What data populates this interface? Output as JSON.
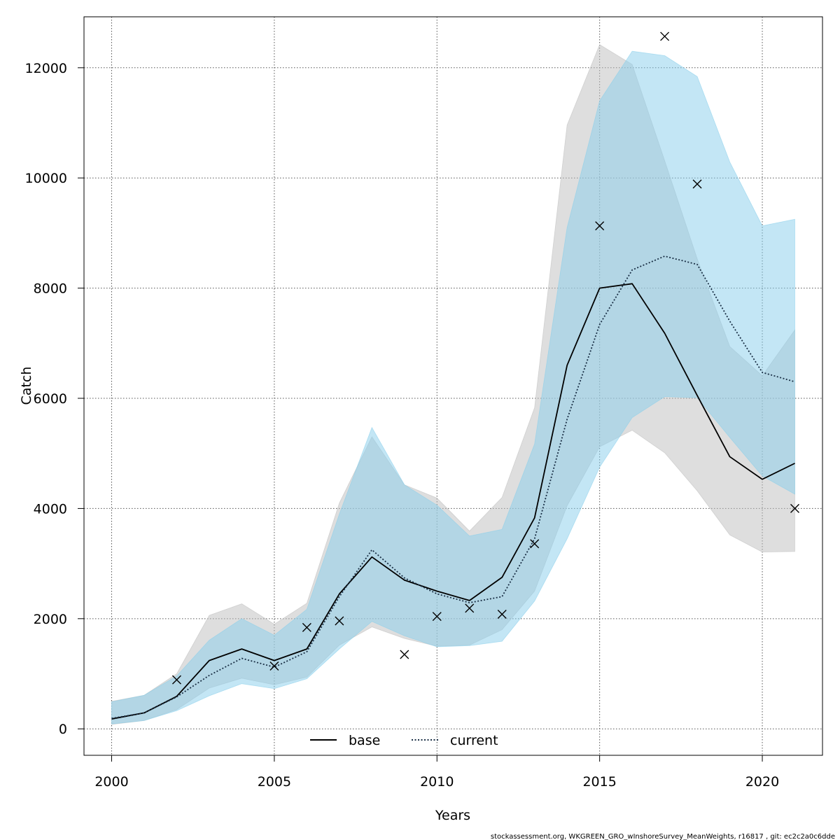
{
  "chart_data": {
    "type": "line",
    "xlabel": "Years",
    "ylabel": "Catch",
    "xlim": [
      1999.15,
      2021.85
    ],
    "ylim": [
      -480,
      12925
    ],
    "xticks": [
      2000,
      2005,
      2010,
      2015,
      2020
    ],
    "yticks": [
      0,
      2000,
      4000,
      6000,
      8000,
      10000,
      12000
    ],
    "grid": true,
    "legend_position": "bottom-center",
    "x": [
      2000,
      2001,
      2002,
      2003,
      2004,
      2005,
      2006,
      2007,
      2008,
      2009,
      2010,
      2011,
      2012,
      2013,
      2014,
      2015,
      2016,
      2017,
      2018,
      2019,
      2020,
      2021
    ],
    "series": [
      {
        "name": "base",
        "line_color": "#000000",
        "dash": "solid",
        "band_color": "#bebebe",
        "values": [
          180,
          290,
          590,
          1240,
          1450,
          1240,
          1450,
          2450,
          3120,
          2700,
          2500,
          2330,
          2750,
          3830,
          6600,
          8000,
          8080,
          7180,
          6050,
          4940,
          4530,
          4820
        ],
        "lower": [
          80,
          150,
          350,
          740,
          920,
          800,
          940,
          1520,
          1850,
          1640,
          1500,
          1520,
          1800,
          2500,
          4050,
          5120,
          5420,
          5010,
          4320,
          3520,
          3210,
          3220
        ],
        "upper": [
          500,
          610,
          1000,
          2060,
          2270,
          1900,
          2280,
          4100,
          5300,
          4430,
          4190,
          3590,
          4200,
          5830,
          10960,
          12420,
          12060,
          10310,
          8530,
          6940,
          6410,
          7240
        ]
      },
      {
        "name": "current",
        "line_color": "#1a2f45",
        "dash": "dotted",
        "band_color": "#87ceeb",
        "values": [
          190,
          290,
          580,
          970,
          1280,
          1120,
          1400,
          2400,
          3250,
          2740,
          2450,
          2290,
          2400,
          3450,
          5620,
          7340,
          8330,
          8580,
          8430,
          7400,
          6470,
          6300
        ],
        "lower": [
          90,
          150,
          330,
          600,
          820,
          730,
          910,
          1450,
          1950,
          1690,
          1490,
          1510,
          1590,
          2320,
          3450,
          4750,
          5650,
          6030,
          6010,
          5290,
          4590,
          4260
        ],
        "upper": [
          490,
          610,
          960,
          1610,
          2000,
          1700,
          2170,
          3900,
          5470,
          4430,
          4060,
          3500,
          3620,
          5170,
          9100,
          11400,
          12300,
          12220,
          11840,
          10290,
          9130,
          9250
        ]
      }
    ],
    "observations": {
      "marker": "x",
      "points": [
        [
          2002,
          890
        ],
        [
          2005,
          1140
        ],
        [
          2006,
          1840
        ],
        [
          2007,
          1960
        ],
        [
          2009,
          1350
        ],
        [
          2010,
          2040
        ],
        [
          2011,
          2190
        ],
        [
          2012,
          2080
        ],
        [
          2013,
          3360
        ],
        [
          2015,
          9130
        ],
        [
          2017,
          12570
        ],
        [
          2018,
          9890
        ],
        [
          2021,
          4000
        ]
      ]
    }
  },
  "legend": {
    "items": [
      {
        "label": "base",
        "color": "#000000",
        "dash": "solid"
      },
      {
        "label": "current",
        "color": "#1a2f45",
        "dash": "dotted"
      }
    ]
  },
  "footer": {
    "text": "stockassessment.org, WKGREEN_GRO_wInshoreSurvey_MeanWeights, r16817 , git: ec2c2a0c6dde"
  }
}
